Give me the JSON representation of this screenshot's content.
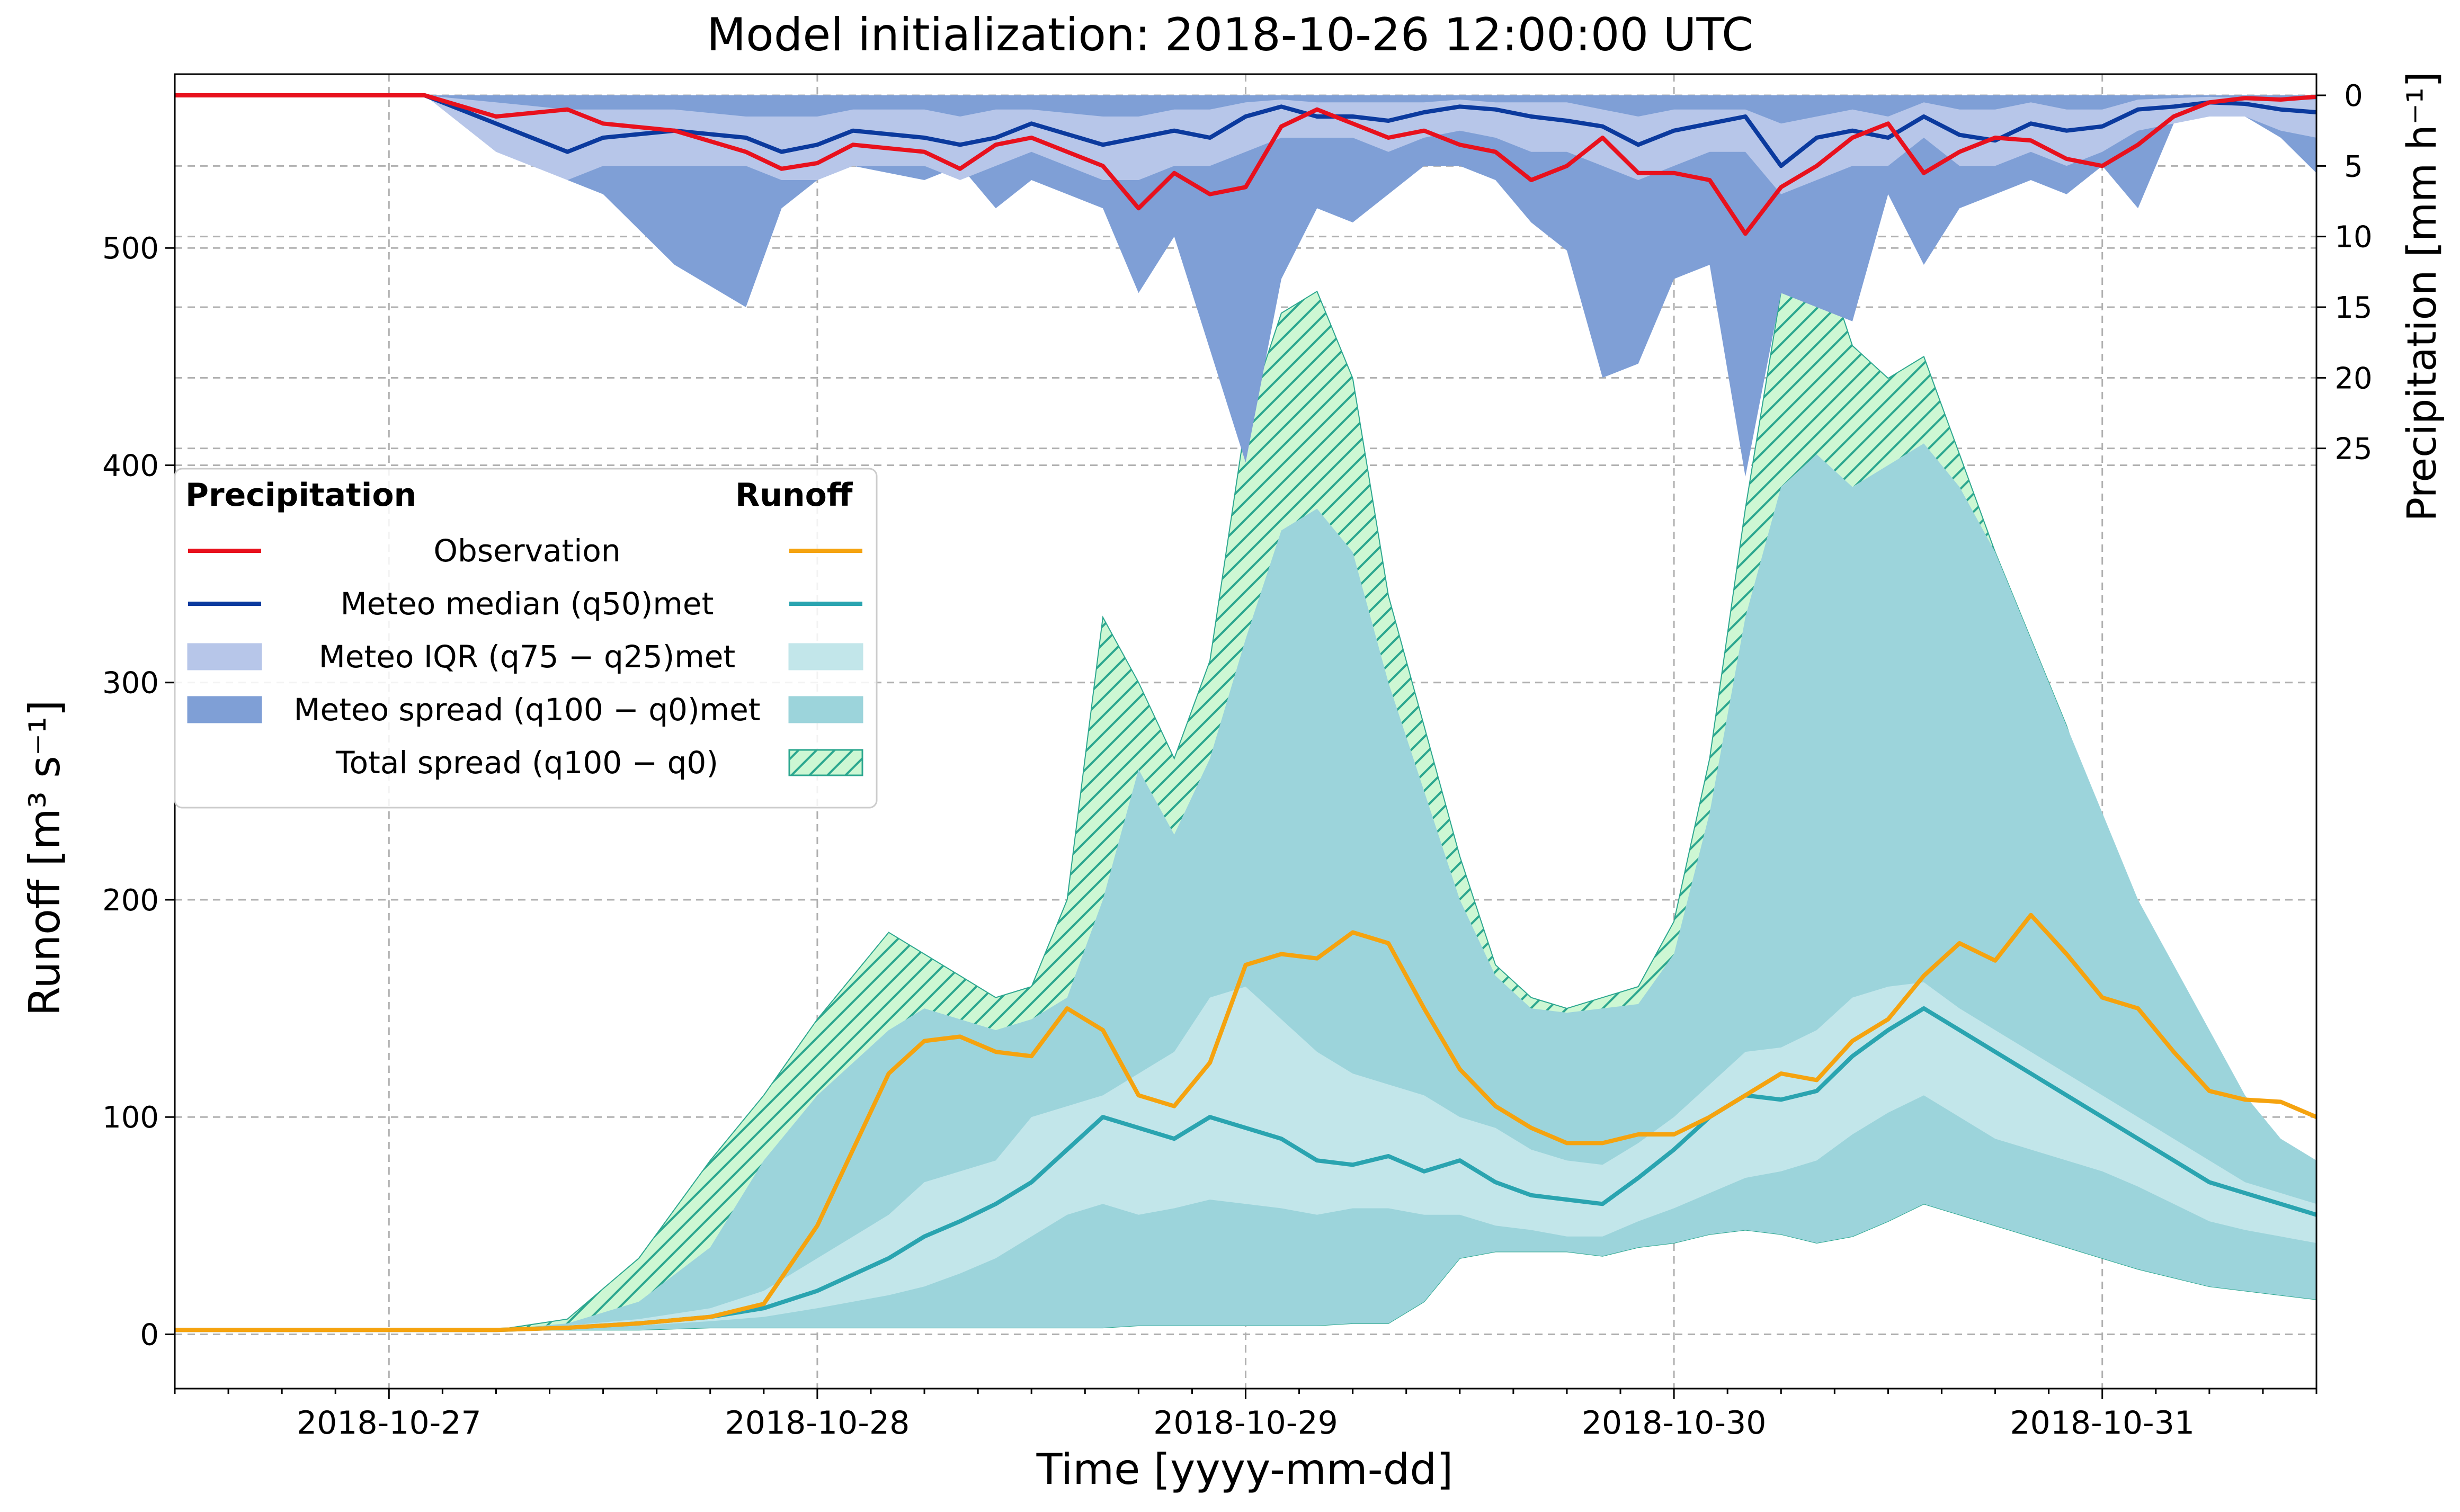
{
  "chart_data": {
    "type": "area",
    "title": "Model initialization: 2018-10-26 12:00:00 UTC",
    "xlabel": "Time [yyyy-mm-dd]",
    "ylabel_runoff": "Runoff [m³ s⁻¹]",
    "ylabel_precip": "Precipitation [mm h⁻¹]",
    "x_range": [
      "2018-10-26 12:00",
      "2018-10-31 12:00"
    ],
    "x_ticks": [
      "2018-10-27",
      "2018-10-28",
      "2018-10-29",
      "2018-10-30",
      "2018-10-31"
    ],
    "runoff_ylim": [
      -25,
      580
    ],
    "runoff_ticks": [
      0,
      100,
      200,
      300,
      400,
      500
    ],
    "precip_ylim_inverted": [
      0,
      28.5
    ],
    "precip_ticks": [
      0,
      5,
      10,
      15,
      20,
      25
    ],
    "grid": true,
    "legend": {
      "placement": "top-left",
      "col_precip_header": "Precipitation",
      "col_runoff_header": "Runoff",
      "rows": [
        {
          "key": "obs",
          "label": "Observation"
        },
        {
          "key": "median",
          "label": "Meteo median (q50)met"
        },
        {
          "key": "iqr",
          "label": "Meteo IQR (q75 − q25)met"
        },
        {
          "key": "spread",
          "label": "Meteo spread (q100 − q0)met"
        },
        {
          "key": "total",
          "label": "Total spread (q100 − q0)"
        }
      ]
    },
    "colors": {
      "precip_obs": "#e8111d",
      "precip_median": "#0b3a9e",
      "precip_iqr": "#b7c6e9",
      "precip_spread": "#7f9fd6",
      "runoff_obs": "#f5a30f",
      "runoff_median": "#2aa4b0",
      "runoff_iqr": "#c2e6ea",
      "runoff_spread": "#9cd4db",
      "runoff_total_fill": "#cdf7d3",
      "runoff_total_hatch": "#2ca78f"
    },
    "runoff": {
      "x_hours": [
        0,
        6,
        12,
        18,
        22,
        26,
        30,
        33,
        36,
        40,
        42,
        44,
        46,
        48,
        50,
        52,
        54,
        56,
        58,
        60,
        62,
        64,
        66,
        68,
        70,
        72,
        74,
        76,
        78,
        80,
        82,
        84,
        86,
        88,
        90,
        92,
        94,
        96,
        98,
        100,
        102,
        104,
        106,
        108,
        110,
        112,
        114,
        116,
        118,
        120
      ],
      "observation": [
        2,
        2,
        2,
        2,
        3,
        5,
        8,
        14,
        50,
        120,
        135,
        137,
        130,
        128,
        150,
        140,
        110,
        105,
        125,
        170,
        175,
        173,
        185,
        180,
        150,
        122,
        105,
        95,
        88,
        88,
        92,
        92,
        100,
        110,
        120,
        117,
        135,
        145,
        165,
        180,
        172,
        193,
        175,
        155,
        150,
        130,
        112,
        108,
        107,
        100
      ],
      "median": [
        2,
        2,
        2,
        2,
        3,
        5,
        8,
        12,
        20,
        35,
        45,
        52,
        60,
        70,
        85,
        100,
        95,
        90,
        100,
        95,
        90,
        80,
        78,
        82,
        75,
        80,
        70,
        64,
        62,
        60,
        72,
        85,
        100,
        110,
        108,
        112,
        128,
        140,
        150,
        140,
        130,
        120,
        110,
        100,
        90,
        80,
        70,
        65,
        60,
        55
      ],
      "iqr_low": [
        2,
        2,
        2,
        2,
        3,
        4,
        6,
        8,
        12,
        18,
        22,
        28,
        35,
        45,
        55,
        60,
        55,
        58,
        62,
        60,
        58,
        55,
        58,
        58,
        55,
        55,
        50,
        48,
        45,
        45,
        52,
        58,
        65,
        72,
        75,
        80,
        92,
        102,
        110,
        100,
        90,
        85,
        80,
        75,
        68,
        60,
        52,
        48,
        45,
        42
      ],
      "iqr_high": [
        2,
        2,
        2,
        2,
        4,
        7,
        12,
        20,
        35,
        55,
        70,
        75,
        80,
        100,
        105,
        110,
        120,
        130,
        155,
        160,
        145,
        130,
        120,
        115,
        110,
        100,
        95,
        85,
        80,
        78,
        88,
        100,
        115,
        130,
        132,
        140,
        155,
        160,
        162,
        150,
        140,
        130,
        120,
        110,
        100,
        90,
        80,
        70,
        65,
        60
      ],
      "spread_low": [
        2,
        2,
        2,
        2,
        2,
        2,
        3,
        3,
        3,
        3,
        3,
        3,
        3,
        3,
        3,
        3,
        4,
        4,
        4,
        4,
        4,
        4,
        5,
        5,
        15,
        35,
        38,
        38,
        38,
        36,
        40,
        42,
        46,
        48,
        46,
        42,
        45,
        52,
        60,
        55,
        50,
        45,
        40,
        35,
        30,
        26,
        22,
        20,
        18,
        16
      ],
      "spread_high": [
        2,
        2,
        2,
        2,
        5,
        15,
        40,
        80,
        110,
        140,
        150,
        145,
        140,
        145,
        155,
        200,
        260,
        230,
        265,
        320,
        370,
        380,
        360,
        300,
        250,
        200,
        165,
        150,
        148,
        150,
        152,
        175,
        240,
        330,
        390,
        405,
        390,
        400,
        410,
        390,
        360,
        320,
        280,
        240,
        200,
        170,
        140,
        110,
        90,
        80
      ],
      "total_low": [
        2,
        2,
        2,
        2,
        2,
        2,
        3,
        3,
        3,
        3,
        3,
        3,
        3,
        3,
        3,
        3,
        4,
        4,
        4,
        4,
        4,
        4,
        5,
        5,
        15,
        35,
        38,
        38,
        38,
        36,
        40,
        42,
        46,
        48,
        46,
        42,
        45,
        52,
        60,
        55,
        50,
        45,
        40,
        35,
        30,
        26,
        22,
        20,
        18,
        16
      ],
      "total_high": [
        2,
        2,
        2,
        2,
        7,
        35,
        80,
        110,
        145,
        185,
        175,
        165,
        155,
        160,
        200,
        330,
        300,
        265,
        310,
        420,
        470,
        480,
        440,
        340,
        280,
        220,
        170,
        155,
        150,
        155,
        160,
        190,
        265,
        380,
        480,
        505,
        455,
        440,
        450,
        405,
        360,
        320,
        280,
        230,
        180,
        140,
        105,
        80,
        75,
        80
      ]
    },
    "precipitation": {
      "x_hours": [
        0,
        10,
        14,
        18,
        22,
        24,
        28,
        32,
        34,
        36,
        38,
        42,
        44,
        46,
        48,
        52,
        54,
        56,
        58,
        60,
        62,
        64,
        66,
        68,
        70,
        72,
        74,
        76,
        78,
        80,
        82,
        84,
        86,
        88,
        90,
        92,
        94,
        96,
        98,
        100,
        102,
        104,
        106,
        108,
        110,
        112,
        114,
        116,
        118,
        120
      ],
      "observation": [
        0,
        0,
        0,
        1.5,
        1,
        2,
        2.5,
        4,
        5.2,
        4.8,
        3.5,
        4,
        5.2,
        3.5,
        3,
        5,
        8,
        5.5,
        7,
        6.5,
        2.2,
        1,
        2,
        3,
        2.5,
        3.5,
        4,
        6,
        5,
        3,
        5.5,
        5.5,
        6,
        9.8,
        6.5,
        5,
        3,
        2,
        5.5,
        4,
        3,
        3.2,
        4.5,
        5,
        3.5,
        1.5,
        0.5,
        0.2,
        0.3,
        0.1
      ],
      "median": [
        0,
        0,
        0,
        2,
        4,
        3,
        2.5,
        3,
        4,
        3.5,
        2.5,
        3,
        3.5,
        3,
        2,
        3.5,
        3,
        2.5,
        3,
        1.5,
        0.8,
        1.5,
        1.5,
        1.8,
        1.2,
        0.8,
        1,
        1.5,
        1.8,
        2.2,
        3.5,
        2.5,
        2,
        1.5,
        5,
        3,
        2.5,
        3,
        1.5,
        2.8,
        3.2,
        2,
        2.5,
        2.2,
        1,
        0.8,
        0.5,
        0.6,
        1,
        1.2
      ],
      "iqr_low": [
        0,
        0,
        0,
        0.5,
        1,
        1,
        1,
        1.5,
        1.5,
        1.5,
        1,
        1,
        1.5,
        1,
        1,
        1.5,
        1.5,
        1,
        1,
        0.5,
        0.3,
        0.5,
        0.5,
        0.5,
        0.5,
        0.3,
        0.5,
        0.5,
        0.5,
        1,
        1.5,
        1,
        1,
        1,
        2,
        1.5,
        1,
        1.5,
        0.5,
        1,
        1,
        0.5,
        1,
        1,
        0.3,
        0.2,
        0.1,
        0.2,
        0.3,
        0.3
      ],
      "iqr_high": [
        0,
        0,
        0,
        4,
        6,
        5,
        5,
        5,
        6,
        6,
        5,
        5,
        6,
        5,
        4,
        6,
        6,
        5,
        5,
        4,
        3,
        3,
        3,
        4,
        3,
        2.5,
        3,
        4,
        4,
        5,
        6,
        5,
        4,
        4,
        7,
        6,
        5,
        5,
        3,
        5,
        5,
        4,
        5,
        4,
        2.5,
        2,
        1.5,
        1.5,
        2.5,
        3
      ],
      "spread_high": [
        0,
        0,
        0,
        3,
        6,
        7,
        12,
        15,
        8,
        6,
        5,
        6,
        5,
        8,
        6,
        8,
        14,
        10,
        18,
        26,
        13,
        8,
        9,
        7,
        5,
        5,
        6,
        9,
        11,
        20,
        19,
        13,
        12,
        27,
        14,
        15,
        16,
        7,
        12,
        8,
        7,
        6,
        7,
        5,
        8,
        2,
        1,
        1.5,
        3,
        5.5
      ]
    }
  }
}
